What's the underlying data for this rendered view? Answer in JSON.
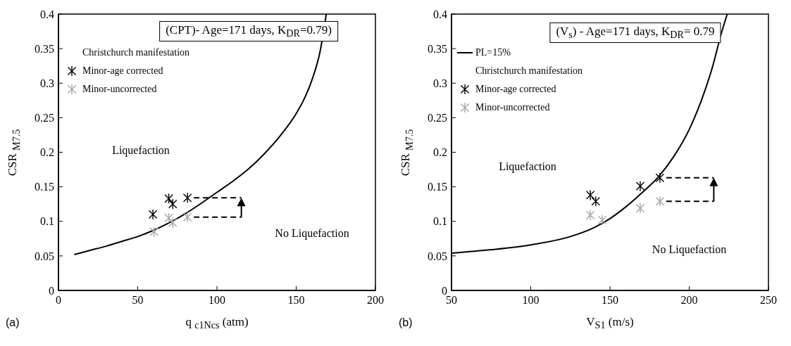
{
  "chart_data": [
    {
      "type": "scatter",
      "xlabel": "q $_{c1Ncs}$ (atm)",
      "ylabel": "CSR $_{M7.5}$",
      "legend_title": "Christchurch manifestation",
      "legend": "top left",
      "annotations": [
        "(CPT)- Age=171 days, K$_{DR}$=0.79)",
        "Liquefaction",
        "No Liquefaction",
        "(a)"
      ],
      "xlim": [
        0,
        200
      ],
      "xticks": [
        0,
        50,
        100,
        150,
        200
      ],
      "ylim": [
        0,
        0.4
      ],
      "yticks": [
        0,
        0.05,
        0.1,
        0.15,
        0.2,
        0.25,
        0.3,
        0.35,
        0.4
      ],
      "series": [
        {
          "type": "line",
          "marker": "none",
          "color": "#000000",
          "x": [
            10,
            20,
            30,
            40,
            50,
            60,
            70,
            80,
            90,
            100,
            110,
            120,
            130,
            140,
            150,
            155,
            160,
            165,
            169
          ],
          "values": [
            0.052,
            0.058,
            0.064,
            0.071,
            0.078,
            0.087,
            0.098,
            0.111,
            0.126,
            0.142,
            0.158,
            0.176,
            0.198,
            0.224,
            0.256,
            0.277,
            0.305,
            0.345,
            0.4
          ]
        },
        {
          "name": "Minor-age corrected",
          "marker": "cross",
          "color": "#000000",
          "x": [
            59.6,
            69.6,
            72.1,
            81.4
          ],
          "values": [
            0.11,
            0.133,
            0.125,
            0.134
          ]
        },
        {
          "name": "Minor-uncorrected",
          "marker": "cross",
          "color": "#a6a6a6",
          "x": [
            60.3,
            69.6,
            72.1,
            81.4
          ],
          "values": [
            0.085,
            0.105,
            0.098,
            0.106
          ]
        }
      ]
    },
    {
      "type": "scatter",
      "xlabel": "V$_{S1}$ (m/s)",
      "ylabel": "CSR $_{M7.5}$",
      "legend_title": "Christchurch manifestation",
      "legend": "top left",
      "annotations": [
        "(V$_{s}$) - Age=171 days, K$_{DR}$= 0.79",
        "Liquefaction",
        "No Liquefaction",
        "(b)"
      ],
      "xlim": [
        50,
        250
      ],
      "xticks": [
        50,
        100,
        150,
        200,
        250
      ],
      "ylim": [
        0,
        0.4
      ],
      "yticks": [
        0,
        0.05,
        0.1,
        0.15,
        0.2,
        0.25,
        0.3,
        0.35,
        0.4
      ],
      "series": [
        {
          "name": "PL=15%",
          "type": "line",
          "marker": "none",
          "color": "#000000",
          "x": [
            50,
            75,
            100,
            125,
            140,
            150,
            160,
            170,
            180,
            190,
            200,
            210,
            215,
            220,
            224
          ],
          "values": [
            0.054,
            0.059,
            0.066,
            0.078,
            0.091,
            0.104,
            0.121,
            0.141,
            0.163,
            0.193,
            0.233,
            0.29,
            0.326,
            0.37,
            0.4
          ]
        },
        {
          "name": "Minor-age corrected",
          "marker": "cross",
          "color": "#000000",
          "x": [
            137.6,
            141,
            169.1,
            181.5
          ],
          "values": [
            0.138,
            0.129,
            0.151,
            0.163
          ]
        },
        {
          "name": "Minor-uncorrected",
          "marker": "cross",
          "color": "#a6a6a6",
          "x": [
            137.6,
            145.1,
            169.1,
            181.5
          ],
          "values": [
            0.109,
            0.102,
            0.119,
            0.129
          ]
        }
      ]
    }
  ]
}
